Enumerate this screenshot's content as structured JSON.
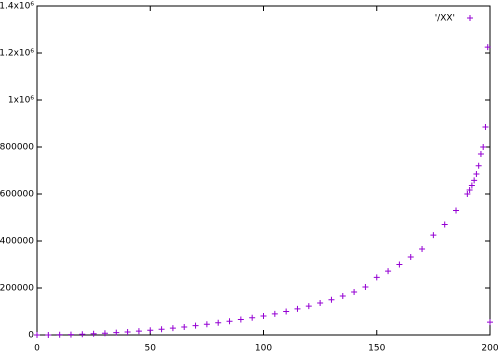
{
  "chart_data": {
    "type": "scatter",
    "marker": "plus",
    "x": [
      0,
      5,
      10,
      15,
      20,
      25,
      30,
      35,
      40,
      45,
      50,
      55,
      60,
      65,
      70,
      75,
      80,
      85,
      90,
      95,
      100,
      105,
      110,
      115,
      120,
      125,
      130,
      135,
      140,
      145,
      150,
      155,
      160,
      165,
      170,
      175,
      180,
      185,
      190,
      191,
      192,
      193,
      194,
      195,
      196,
      197,
      198,
      199,
      200
    ],
    "series": [
      {
        "name": "'/XX'",
        "color": "#9400d3",
        "values": [
          0,
          200,
          810,
          1820,
          3240,
          5060,
          7290,
          9920,
          12960,
          16400,
          20250,
          24500,
          29200,
          34300,
          39800,
          45700,
          52000,
          58700,
          65800,
          73300,
          81000,
          90000,
          100000,
          111000,
          123000,
          136000,
          150000,
          166000,
          183000,
          204000,
          245000,
          272000,
          300000,
          332000,
          366000,
          425000,
          470000,
          530000,
          600000,
          617000,
          636000,
          658000,
          685000,
          720000,
          770000,
          800000,
          885000,
          1225000,
          55000
        ]
      }
    ],
    "xlim": [
      0,
      200
    ],
    "xticks": [
      0,
      50,
      100,
      150,
      200
    ],
    "ylim": [
      0,
      1400000
    ],
    "yticks": [
      0,
      200000,
      400000,
      600000,
      800000,
      {
        "value": 1000000,
        "label": "1x10⁶"
      },
      {
        "value": 1200000,
        "label": "1.2x10⁶"
      },
      {
        "value": 1400000,
        "label": "1.4x10⁶"
      }
    ],
    "legend": "top-right"
  }
}
